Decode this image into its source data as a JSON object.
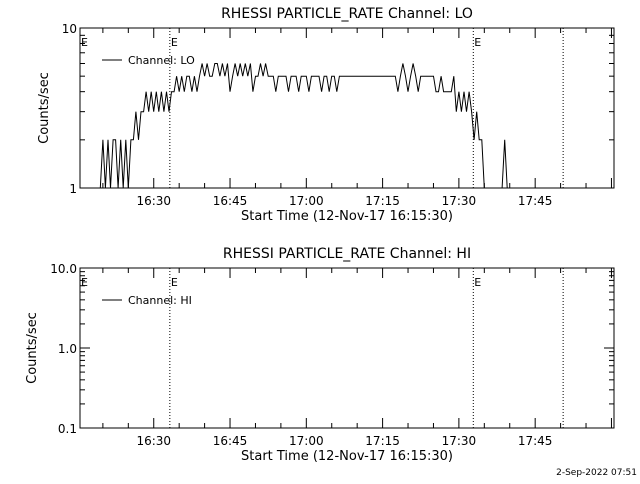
{
  "footer": {
    "timestamp": "2-Sep-2022 07:51"
  },
  "chart_data": [
    {
      "type": "line",
      "title": "RHESSI PARTICLE_RATE Channel: LO",
      "xlabel": "Start Time (12-Nov-17 16:15:30)",
      "ylabel": "Counts/sec",
      "y_scale": "log",
      "ylim": [
        1,
        10
      ],
      "y_ticks": [
        {
          "value": 1,
          "label": "1"
        },
        {
          "value": 10,
          "label": "10"
        }
      ],
      "xlim": [
        "16:15:30",
        "18:00:30"
      ],
      "x_ticks": [
        "16:30",
        "16:45",
        "17:00",
        "17:15",
        "17:30",
        "17:45"
      ],
      "legend": {
        "placement": "top-left",
        "entries": [
          "Channel: LO"
        ]
      },
      "markers": [
        {
          "time": "16:33:10",
          "label": "E"
        },
        {
          "time": "17:32:50",
          "label": "E"
        },
        {
          "time": "17:50:30",
          "label": ""
        }
      ],
      "edge_marker": "E",
      "series": [
        {
          "name": "Channel: LO",
          "points": [
            [
              "16:19:30",
              1
            ],
            [
              "16:20:00",
              2
            ],
            [
              "16:20:30",
              1
            ],
            [
              "16:21:00",
              2
            ],
            [
              "16:21:30",
              1
            ],
            [
              "16:22:00",
              2
            ],
            [
              "16:22:30",
              2
            ],
            [
              "16:23:00",
              1
            ],
            [
              "16:23:30",
              2
            ],
            [
              "16:24:00",
              1
            ],
            [
              "16:24:30",
              2
            ],
            [
              "16:25:00",
              1
            ],
            [
              "16:25:30",
              2
            ],
            [
              "16:26:00",
              2
            ],
            [
              "16:26:30",
              3
            ],
            [
              "16:27:00",
              2
            ],
            [
              "16:27:30",
              3
            ],
            [
              "16:28:00",
              3
            ],
            [
              "16:28:30",
              4
            ],
            [
              "16:29:00",
              3
            ],
            [
              "16:29:30",
              4
            ],
            [
              "16:30:00",
              3
            ],
            [
              "16:30:30",
              4
            ],
            [
              "16:31:00",
              3
            ],
            [
              "16:31:30",
              4
            ],
            [
              "16:32:00",
              3
            ],
            [
              "16:32:30",
              4
            ],
            [
              "16:33:00",
              3
            ],
            [
              "16:33:30",
              4
            ],
            [
              "16:34:00",
              4
            ],
            [
              "16:34:30",
              5
            ],
            [
              "16:35:00",
              4
            ],
            [
              "16:35:30",
              5
            ],
            [
              "16:36:00",
              4
            ],
            [
              "16:36:30",
              5
            ],
            [
              "16:37:00",
              5
            ],
            [
              "16:37:30",
              4
            ],
            [
              "16:38:00",
              5
            ],
            [
              "16:38:30",
              4
            ],
            [
              "16:39:00",
              5
            ],
            [
              "16:39:30",
              6
            ],
            [
              "16:40:00",
              5
            ],
            [
              "16:40:30",
              6
            ],
            [
              "16:41:00",
              5
            ],
            [
              "16:41:30",
              5
            ],
            [
              "16:42:00",
              6
            ],
            [
              "16:42:30",
              6
            ],
            [
              "16:43:00",
              5
            ],
            [
              "16:43:30",
              6
            ],
            [
              "16:44:00",
              5
            ],
            [
              "16:44:30",
              6
            ],
            [
              "16:45:00",
              4
            ],
            [
              "16:45:30",
              5
            ],
            [
              "16:46:00",
              6
            ],
            [
              "16:46:30",
              5
            ],
            [
              "16:47:00",
              6
            ],
            [
              "16:47:30",
              5
            ],
            [
              "16:48:00",
              6
            ],
            [
              "16:48:30",
              5
            ],
            [
              "16:49:00",
              6
            ],
            [
              "16:49:30",
              4
            ],
            [
              "16:50:00",
              5
            ],
            [
              "16:50:30",
              5
            ],
            [
              "16:51:00",
              6
            ],
            [
              "16:51:30",
              5
            ],
            [
              "16:52:00",
              6
            ],
            [
              "16:52:30",
              5
            ],
            [
              "16:53:00",
              5
            ],
            [
              "16:53:30",
              5
            ],
            [
              "16:54:00",
              4
            ],
            [
              "16:54:30",
              5
            ],
            [
              "16:55:00",
              5
            ],
            [
              "16:55:30",
              5
            ],
            [
              "16:56:00",
              5
            ],
            [
              "16:56:30",
              4
            ],
            [
              "16:57:00",
              5
            ],
            [
              "16:57:30",
              5
            ],
            [
              "16:58:00",
              5
            ],
            [
              "16:58:30",
              4
            ],
            [
              "16:59:00",
              5
            ],
            [
              "16:59:30",
              5
            ],
            [
              "17:00:00",
              5
            ],
            [
              "17:00:30",
              4
            ],
            [
              "17:01:00",
              5
            ],
            [
              "17:01:30",
              5
            ],
            [
              "17:02:00",
              5
            ],
            [
              "17:02:30",
              5
            ],
            [
              "17:03:00",
              4
            ],
            [
              "17:03:30",
              5
            ],
            [
              "17:04:00",
              5
            ],
            [
              "17:04:30",
              4
            ],
            [
              "17:05:00",
              5
            ],
            [
              "17:05:30",
              5
            ],
            [
              "17:06:00",
              4
            ],
            [
              "17:06:30",
              5
            ],
            [
              "17:07:00",
              5
            ],
            [
              "17:07:30",
              5
            ],
            [
              "17:08:00",
              5
            ],
            [
              "17:08:30",
              5
            ],
            [
              "17:09:00",
              5
            ],
            [
              "17:09:30",
              5
            ],
            [
              "17:10:00",
              5
            ],
            [
              "17:10:30",
              5
            ],
            [
              "17:11:00",
              5
            ],
            [
              "17:11:30",
              5
            ],
            [
              "17:12:00",
              5
            ],
            [
              "17:12:30",
              5
            ],
            [
              "17:13:00",
              5
            ],
            [
              "17:13:30",
              5
            ],
            [
              "17:14:00",
              5
            ],
            [
              "17:14:30",
              5
            ],
            [
              "17:15:00",
              5
            ],
            [
              "17:15:30",
              5
            ],
            [
              "17:16:00",
              5
            ],
            [
              "17:16:30",
              5
            ],
            [
              "17:17:00",
              5
            ],
            [
              "17:17:30",
              5
            ],
            [
              "17:18:00",
              4
            ],
            [
              "17:18:30",
              5
            ],
            [
              "17:19:00",
              6
            ],
            [
              "17:19:30",
              5
            ],
            [
              "17:20:00",
              4
            ],
            [
              "17:20:30",
              5
            ],
            [
              "17:21:00",
              6
            ],
            [
              "17:21:30",
              5
            ],
            [
              "17:22:00",
              4
            ],
            [
              "17:22:30",
              5
            ],
            [
              "17:23:00",
              5
            ],
            [
              "17:23:30",
              5
            ],
            [
              "17:24:00",
              5
            ],
            [
              "17:24:30",
              5
            ],
            [
              "17:25:00",
              5
            ],
            [
              "17:25:30",
              4
            ],
            [
              "17:26:00",
              4
            ],
            [
              "17:26:30",
              5
            ],
            [
              "17:27:00",
              4
            ],
            [
              "17:27:30",
              4
            ],
            [
              "17:28:00",
              4
            ],
            [
              "17:28:30",
              4
            ],
            [
              "17:29:00",
              5
            ],
            [
              "17:29:30",
              3
            ],
            [
              "17:30:00",
              4
            ],
            [
              "17:30:30",
              3
            ],
            [
              "17:31:00",
              4
            ],
            [
              "17:31:30",
              3
            ],
            [
              "17:32:00",
              4
            ],
            [
              "17:32:30",
              3
            ],
            [
              "17:33:00",
              2
            ],
            [
              "17:33:30",
              3
            ],
            [
              "17:34:00",
              2
            ],
            [
              "17:34:30",
              2
            ],
            [
              "17:35:00",
              1
            ],
            [
              "17:35:30",
              1
            ],
            [
              "17:36:00",
              1
            ],
            [
              "17:36:30",
              1
            ],
            [
              "17:37:00",
              1
            ],
            [
              "17:37:30",
              1
            ],
            [
              "17:38:00",
              1
            ],
            [
              "17:38:30",
              1
            ],
            [
              "17:39:00",
              2
            ],
            [
              "17:39:30",
              1
            ]
          ]
        }
      ]
    },
    {
      "type": "line",
      "title": "RHESSI PARTICLE_RATE Channel: HI",
      "xlabel": "Start Time (12-Nov-17 16:15:30)",
      "ylabel": "Counts/sec",
      "y_scale": "log",
      "ylim": [
        0.1,
        10.0
      ],
      "y_ticks": [
        {
          "value": 0.1,
          "label": "0.1"
        },
        {
          "value": 1.0,
          "label": "1.0"
        },
        {
          "value": 10.0,
          "label": "10.0"
        }
      ],
      "xlim": [
        "16:15:30",
        "18:00:30"
      ],
      "x_ticks": [
        "16:30",
        "16:45",
        "17:00",
        "17:15",
        "17:30",
        "17:45"
      ],
      "legend": {
        "placement": "top-left",
        "entries": [
          "Channel: HI"
        ]
      },
      "markers": [
        {
          "time": "16:33:10",
          "label": "E"
        },
        {
          "time": "17:32:50",
          "label": "E"
        },
        {
          "time": "17:50:30",
          "label": ""
        }
      ],
      "edge_marker": "E",
      "series": [
        {
          "name": "Channel: HI",
          "points": []
        }
      ]
    }
  ]
}
